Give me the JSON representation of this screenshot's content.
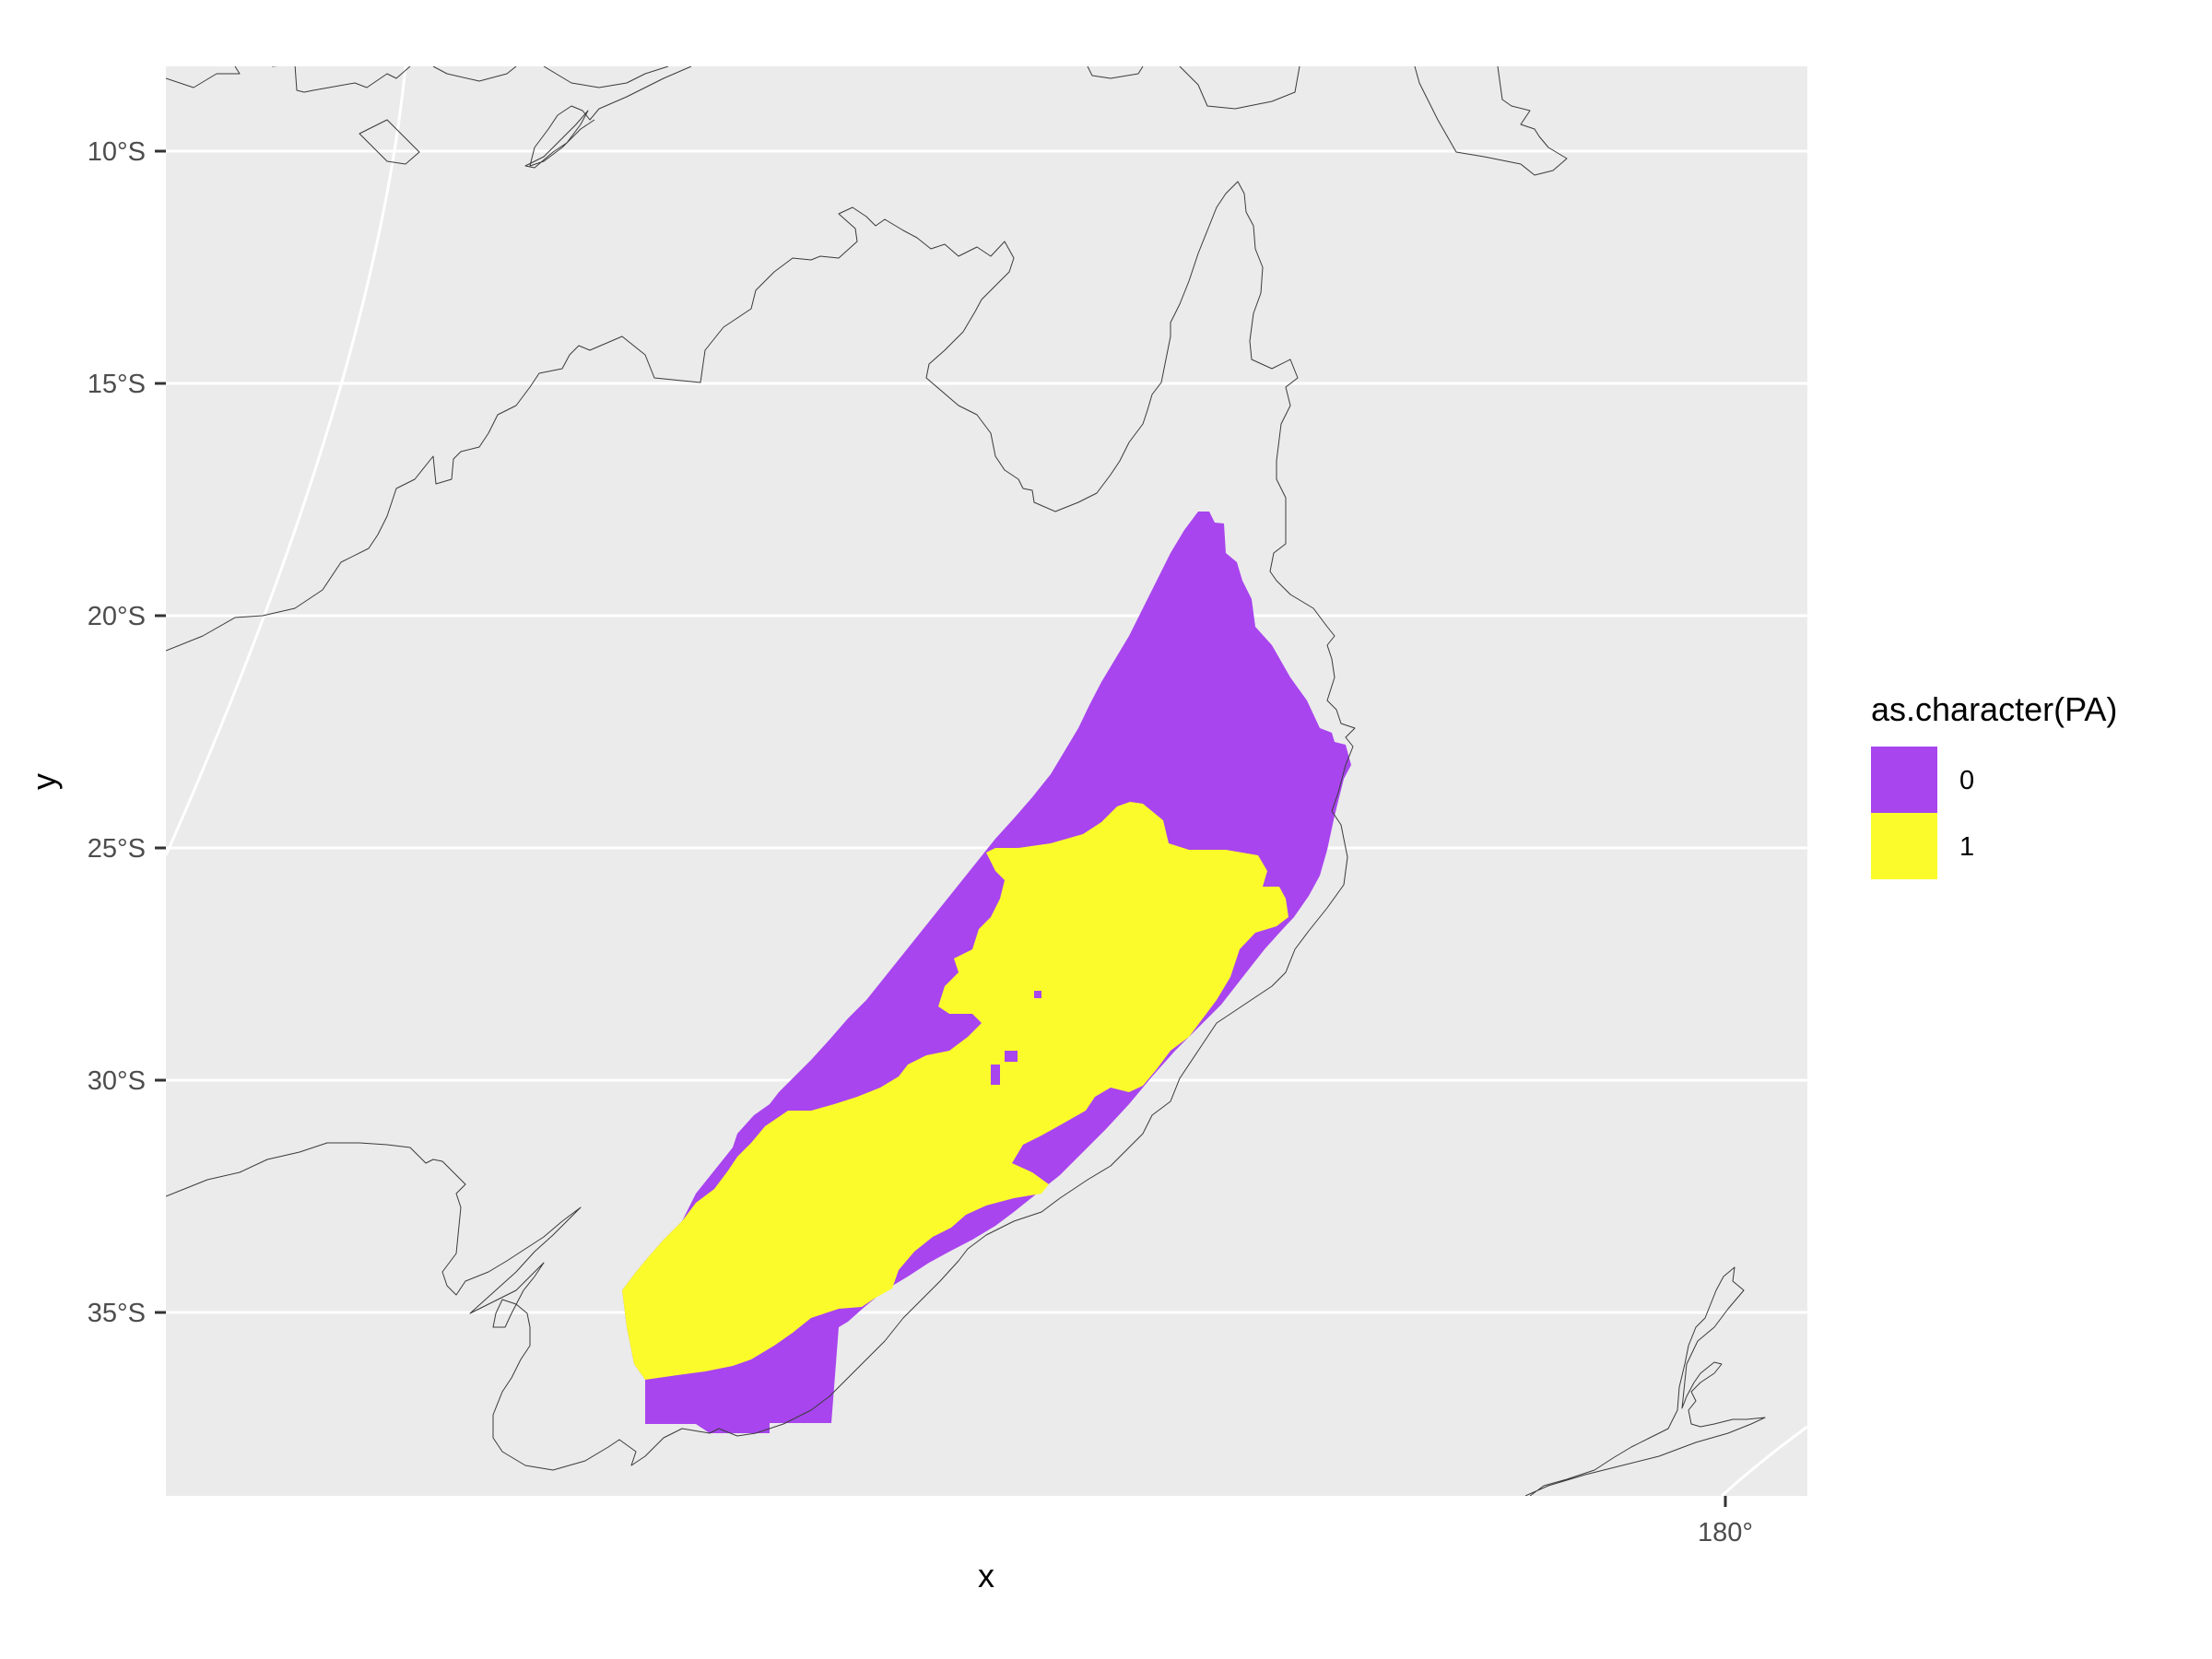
{
  "chart_data": {
    "type": "map",
    "xlabel": "x",
    "ylabel": "y",
    "x_ticks": [
      {
        "value": 180,
        "label": "180°"
      }
    ],
    "y_ticks": [
      {
        "value": -10,
        "label": "10°S"
      },
      {
        "value": -15,
        "label": "15°S"
      },
      {
        "value": -20,
        "label": "20°S"
      },
      {
        "value": -25,
        "label": "25°S"
      },
      {
        "value": -30,
        "label": "30°S"
      },
      {
        "value": -35,
        "label": "35°S"
      }
    ],
    "legend": {
      "title": "as.character(PA)",
      "position": "right",
      "entries": [
        {
          "label": "0",
          "color": "#a845ee"
        },
        {
          "label": "1",
          "color": "#fbfb2b"
        }
      ]
    },
    "panel_background": "#ebebeb",
    "grid_color": "#ffffff",
    "coastline_color": "#3b3b3b"
  }
}
